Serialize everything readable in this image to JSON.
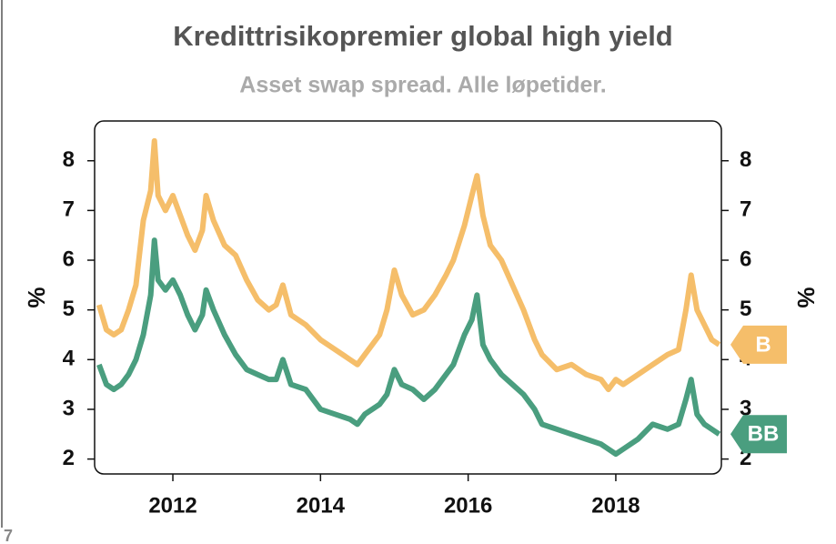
{
  "chart_data": {
    "type": "line",
    "title": "Kredittrisikopremier global high yield",
    "subtitle": "Asset swap spread. Alle løpetider.",
    "ylabel": "%",
    "y2label": "%",
    "x": [
      2011.0,
      2011.1,
      2011.2,
      2011.3,
      2011.4,
      2011.5,
      2011.6,
      2011.7,
      2011.75,
      2011.8,
      2011.9,
      2012.0,
      2012.1,
      2012.2,
      2012.3,
      2012.4,
      2012.45,
      2012.55,
      2012.7,
      2012.85,
      2013.0,
      2013.15,
      2013.3,
      2013.4,
      2013.49,
      2013.6,
      2013.8,
      2014.0,
      2014.2,
      2014.4,
      2014.5,
      2014.6,
      2014.8,
      2014.9,
      2015.0,
      2015.1,
      2015.25,
      2015.4,
      2015.55,
      2015.7,
      2015.8,
      2015.95,
      2016.05,
      2016.12,
      2016.2,
      2016.3,
      2016.45,
      2016.6,
      2016.75,
      2016.9,
      2017.0,
      2017.2,
      2017.4,
      2017.6,
      2017.8,
      2017.9,
      2018.0,
      2018.1,
      2018.3,
      2018.5,
      2018.7,
      2018.85,
      2018.95,
      2019.02,
      2019.1,
      2019.2,
      2019.3,
      2019.4
    ],
    "series": [
      {
        "name": "B",
        "color": "#f5be6a",
        "values": [
          5.1,
          4.6,
          4.5,
          4.6,
          5.0,
          5.5,
          6.8,
          7.4,
          8.4,
          7.3,
          7.0,
          7.3,
          6.9,
          6.5,
          6.2,
          6.6,
          7.3,
          6.8,
          6.3,
          6.1,
          5.6,
          5.2,
          5.0,
          5.1,
          5.5,
          4.9,
          4.7,
          4.4,
          4.2,
          4.0,
          3.9,
          4.1,
          4.5,
          5.0,
          5.8,
          5.3,
          4.9,
          5.0,
          5.3,
          5.7,
          6.0,
          6.7,
          7.3,
          7.7,
          6.9,
          6.3,
          6.0,
          5.5,
          5.0,
          4.4,
          4.1,
          3.8,
          3.9,
          3.7,
          3.6,
          3.4,
          3.6,
          3.5,
          3.7,
          3.9,
          4.1,
          4.2,
          5.0,
          5.7,
          5.0,
          4.7,
          4.4,
          4.3
        ]
      },
      {
        "name": "BB",
        "color": "#4a9e7f",
        "values": [
          3.9,
          3.5,
          3.4,
          3.5,
          3.7,
          4.0,
          4.5,
          5.3,
          6.4,
          5.6,
          5.4,
          5.6,
          5.3,
          4.9,
          4.6,
          4.9,
          5.4,
          5.0,
          4.5,
          4.1,
          3.8,
          3.7,
          3.6,
          3.6,
          4.0,
          3.5,
          3.4,
          3.0,
          2.9,
          2.8,
          2.7,
          2.9,
          3.1,
          3.3,
          3.8,
          3.5,
          3.4,
          3.2,
          3.4,
          3.7,
          3.9,
          4.5,
          4.8,
          5.3,
          4.3,
          4.0,
          3.7,
          3.5,
          3.3,
          3.0,
          2.7,
          2.6,
          2.5,
          2.4,
          2.3,
          2.2,
          2.1,
          2.2,
          2.4,
          2.7,
          2.6,
          2.7,
          3.2,
          3.6,
          2.9,
          2.7,
          2.6,
          2.5
        ]
      }
    ],
    "xlim": [
      2010.94,
      2019.43
    ],
    "xticks": [
      2012,
      2014,
      2016,
      2018
    ],
    "ylim": [
      1.7,
      8.8
    ],
    "yticks": [
      2,
      3,
      4,
      5,
      6,
      7,
      8
    ],
    "y2lim": [
      1.7,
      8.8
    ],
    "y2ticks": [
      2,
      3,
      4,
      5,
      6,
      7,
      8
    ]
  },
  "footer": "7"
}
